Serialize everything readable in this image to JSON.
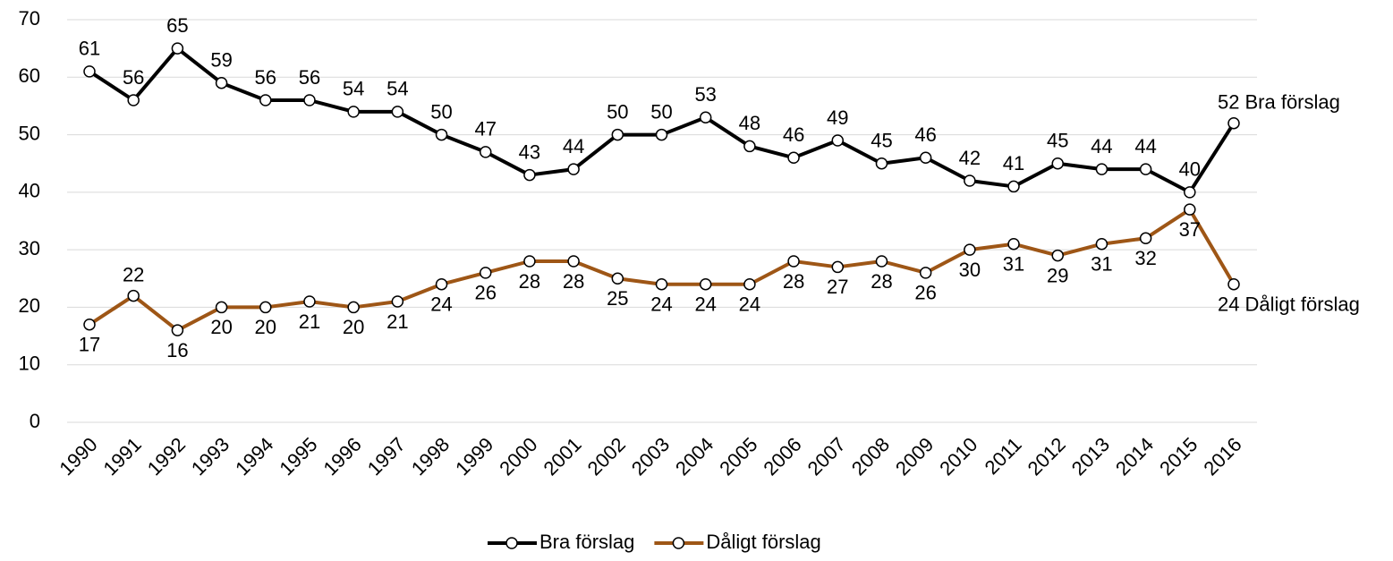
{
  "chart_data": {
    "type": "line",
    "categories": [
      "1990",
      "1991",
      "1992",
      "1993",
      "1994",
      "1995",
      "1996",
      "1997",
      "1998",
      "1999",
      "2000",
      "2001",
      "2002",
      "2003",
      "2004",
      "2005",
      "2006",
      "2007",
      "2008",
      "2009",
      "2010",
      "2011",
      "2012",
      "2013",
      "2014",
      "2015",
      "2016"
    ],
    "series": [
      {
        "name": "Bra förslag",
        "color": "#000000",
        "values": [
          61,
          56,
          65,
          59,
          56,
          56,
          54,
          54,
          50,
          47,
          43,
          44,
          50,
          50,
          53,
          48,
          46,
          49,
          45,
          46,
          42,
          41,
          45,
          44,
          44,
          40,
          52
        ]
      },
      {
        "name": "Dåligt förslag",
        "color": "#9e5616",
        "values": [
          17,
          22,
          16,
          20,
          20,
          21,
          20,
          21,
          24,
          26,
          28,
          28,
          25,
          24,
          24,
          24,
          28,
          27,
          28,
          26,
          30,
          31,
          29,
          31,
          32,
          37,
          24
        ]
      }
    ],
    "ylim": [
      0,
      70
    ],
    "yticks": [
      0,
      10,
      20,
      30,
      40,
      50,
      60,
      70
    ],
    "grid": true,
    "legend": "bottom"
  }
}
